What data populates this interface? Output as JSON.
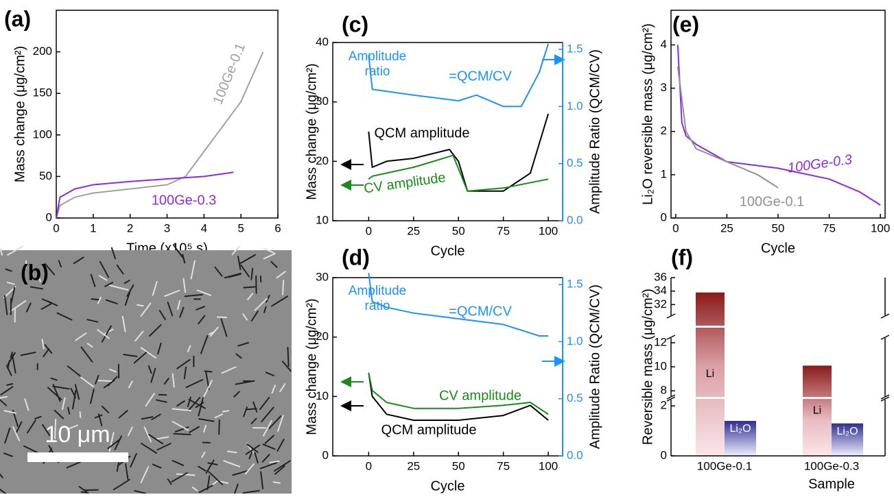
{
  "chart_data": [
    {
      "type": "line",
      "panel_label": "(a)",
      "xlabel": "Time (x10⁵ s)",
      "ylabel": "Mass change (μg/cm²)",
      "xlim": [
        0,
        6
      ],
      "xticks": [
        0,
        1,
        2,
        3,
        4,
        5,
        6
      ],
      "ylim": [
        0,
        250
      ],
      "yticks": [
        0,
        50,
        100,
        150,
        200
      ],
      "series": [
        {
          "name": "100Ge-0.1",
          "color": "#a0a0a0",
          "x": [
            0,
            0.1,
            0.5,
            1,
            2,
            3,
            3.5,
            4,
            4.5,
            5,
            5.6
          ],
          "values": [
            0,
            15,
            25,
            30,
            35,
            40,
            50,
            80,
            110,
            140,
            200
          ]
        },
        {
          "name": "100Ge-0.3",
          "color": "#8a2be2",
          "x": [
            0,
            0.1,
            0.5,
            1,
            2,
            3,
            4,
            4.8
          ],
          "values": [
            0,
            25,
            35,
            40,
            44,
            47,
            50,
            55
          ]
        }
      ]
    },
    {
      "type": "image",
      "panel_label": "(b)",
      "scale_bar_label": "10 μm"
    },
    {
      "type": "line",
      "panel_label": "(c)",
      "xlabel": "Cycle",
      "ylabel": "Mass change (μg/cm²)",
      "y2label": "Amplitude Ratio (QCM/CV)",
      "ratio_formula": "=QCM/CV",
      "xlim": [
        -20,
        108
      ],
      "xticks": [
        0,
        25,
        50,
        75,
        100
      ],
      "ylim": [
        10,
        40
      ],
      "yticks": [
        10,
        20,
        30,
        40
      ],
      "y2lim": [
        0,
        1.56
      ],
      "y2ticks": [
        {
          "value": 0,
          "label": "0.0"
        },
        0.5,
        {
          "value": 1,
          "label": "1.0"
        },
        1.5
      ],
      "series": [
        {
          "name": "QCM amplitude",
          "color": "#000000",
          "x": [
            0,
            2,
            10,
            25,
            45,
            50,
            55,
            75,
            90,
            100
          ],
          "values": [
            25,
            19,
            20,
            20.5,
            22,
            20,
            15,
            15,
            18,
            28
          ]
        },
        {
          "name": "CV amplitude",
          "color": "#1a8a1a",
          "x": [
            0,
            2,
            25,
            47,
            55,
            75,
            100
          ],
          "values": [
            17,
            17.5,
            19,
            21,
            15,
            15.5,
            17
          ]
        },
        {
          "name": "Amplitude ratio",
          "color": "#1e90ff",
          "axis": "y2",
          "x": [
            0,
            2,
            25,
            50,
            60,
            75,
            85,
            95,
            100
          ],
          "values": [
            1.45,
            1.15,
            1.1,
            1.05,
            1.1,
            1,
            1,
            1.3,
            1.55
          ]
        }
      ]
    },
    {
      "type": "line",
      "panel_label": "(d)",
      "xlabel": "Cycle",
      "ylabel": "Mass change (μg/cm²)",
      "y2label": "Amplitude Ratio (QCM/CV)",
      "ratio_formula": "=QCM/CV",
      "xlim": [
        -20,
        108
      ],
      "xticks": [
        0,
        25,
        50,
        75,
        100
      ],
      "ylim": [
        0,
        30
      ],
      "yticks": [
        0,
        10,
        20,
        30
      ],
      "y2lim": [
        0,
        1.56
      ],
      "y2ticks": [
        {
          "value": 0,
          "label": "0.0"
        },
        0.5,
        {
          "value": 1,
          "label": "1.0"
        },
        1.5
      ],
      "series": [
        {
          "name": "QCM amplitude",
          "color": "#000000",
          "x": [
            0,
            2,
            10,
            25,
            50,
            75,
            90,
            100
          ],
          "values": [
            14,
            10,
            7,
            6,
            6,
            6.8,
            8.5,
            6
          ]
        },
        {
          "name": "CV amplitude",
          "color": "#1a8a1a",
          "x": [
            0,
            2,
            10,
            25,
            50,
            75,
            90,
            100
          ],
          "values": [
            14,
            11,
            9,
            8,
            8,
            8.5,
            9,
            7
          ]
        },
        {
          "name": "Amplitude ratio",
          "color": "#1e90ff",
          "axis": "y2",
          "x": [
            0,
            2,
            10,
            25,
            50,
            75,
            95,
            100
          ],
          "values": [
            1.6,
            1.35,
            1.3,
            1.25,
            1.2,
            1.15,
            1.05,
            1.05
          ]
        }
      ]
    },
    {
      "type": "line",
      "panel_label": "(e)",
      "xlabel": "Cycle",
      "ylabel": "Li₂O reversible mass (μg/cm²)",
      "xlim": [
        -2.3,
        102.3
      ],
      "xticks": [
        0,
        25,
        50,
        75,
        100
      ],
      "ylim": [
        0,
        4.8
      ],
      "yticks": [
        0,
        1,
        2,
        3,
        4
      ],
      "series": [
        {
          "name": "100Ge-0.3",
          "color": "#8a2be2",
          "x": [
            1,
            3,
            5,
            10,
            25,
            50,
            75,
            90,
            100
          ],
          "values": [
            4,
            2.2,
            1.9,
            1.7,
            1.3,
            1.15,
            0.9,
            0.6,
            0.3
          ]
        },
        {
          "name": "100Ge-0.1",
          "color": "#909090",
          "x": [
            1,
            5,
            10,
            25,
            40,
            50
          ],
          "values": [
            3.5,
            2,
            1.6,
            1.3,
            1,
            0.7
          ]
        }
      ]
    },
    {
      "type": "broken_bar",
      "panel_label": "(f)",
      "xlabel": "Sample",
      "ylabel": "Reversible mass (μg/cm²)",
      "categories": [
        "100Ge-0.1",
        "100Ge-0.3"
      ],
      "segments": [
        {
          "ylim": [
            0,
            2.25
          ]
        },
        {
          "ylim": [
            7.55,
            12.4
          ]
        },
        {
          "ylim": [
            30.4,
            36
          ]
        }
      ],
      "yticks": [
        0,
        2,
        8,
        10,
        12,
        32,
        34,
        36
      ],
      "series": [
        {
          "name": "Li",
          "color": "#8b1a1a",
          "values": [
            33.8,
            10.1
          ]
        },
        {
          "name": "Li₂O",
          "color": "#2e2e8f",
          "values": [
            1.4,
            1.3
          ]
        }
      ]
    }
  ]
}
